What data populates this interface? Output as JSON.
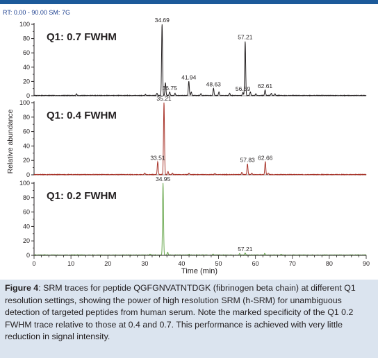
{
  "header": {
    "rt_label": "RT:",
    "rt_range": "0.00 - 90.00",
    "sm_label": "SM:",
    "sm_value": "7G"
  },
  "chart_data": {
    "type": "line",
    "xlabel": "Time (min)",
    "ylabel": "Relative abundance",
    "xlim": [
      0,
      90
    ],
    "ylim": [
      0,
      100
    ],
    "x_ticks": [
      0,
      10,
      20,
      30,
      40,
      50,
      60,
      70,
      80,
      90
    ],
    "y_ticks": [
      0,
      20,
      40,
      60,
      80,
      100
    ],
    "grid": false,
    "panels": [
      {
        "label": "Q1: 0.7 FWHM",
        "color": "#231f20",
        "peaks": [
          {
            "x": 11.5,
            "y": 2
          },
          {
            "x": 30.2,
            "y": 1.5
          },
          {
            "x": 33.3,
            "y": 3
          },
          {
            "x": 34.69,
            "y": 100
          },
          {
            "x": 35.6,
            "y": 18
          },
          {
            "x": 36.75,
            "y": 5
          },
          {
            "x": 38.2,
            "y": 3
          },
          {
            "x": 41.94,
            "y": 20
          },
          {
            "x": 42.6,
            "y": 5
          },
          {
            "x": 45.2,
            "y": 2.5
          },
          {
            "x": 48.63,
            "y": 10
          },
          {
            "x": 50.1,
            "y": 5
          },
          {
            "x": 53.0,
            "y": 3
          },
          {
            "x": 56.59,
            "y": 4
          },
          {
            "x": 57.21,
            "y": 76
          },
          {
            "x": 58.6,
            "y": 5
          },
          {
            "x": 60.1,
            "y": 2.5
          },
          {
            "x": 62.61,
            "y": 8
          },
          {
            "x": 64.3,
            "y": 3
          },
          {
            "x": 65.3,
            "y": 2.5
          }
        ],
        "peak_labels": [
          {
            "x": 34.69,
            "y": 100,
            "text": "34.69"
          },
          {
            "x": 36.75,
            "y": 5,
            "text": "36.75"
          },
          {
            "x": 41.94,
            "y": 20,
            "text": "41.94"
          },
          {
            "x": 48.63,
            "y": 10,
            "text": "48.63"
          },
          {
            "x": 56.59,
            "y": 4,
            "text": "56.59"
          },
          {
            "x": 57.21,
            "y": 76,
            "text": "57.21"
          },
          {
            "x": 62.61,
            "y": 8,
            "text": "62.61"
          }
        ]
      },
      {
        "label": "Q1: 0.4 FWHM",
        "color": "#a8342a",
        "peaks": [
          {
            "x": 30.0,
            "y": 2
          },
          {
            "x": 33.51,
            "y": 18
          },
          {
            "x": 35.21,
            "y": 100
          },
          {
            "x": 36.3,
            "y": 4
          },
          {
            "x": 37.5,
            "y": 2
          },
          {
            "x": 42.0,
            "y": 2
          },
          {
            "x": 49.0,
            "y": 1.5
          },
          {
            "x": 56.3,
            "y": 3
          },
          {
            "x": 57.83,
            "y": 15
          },
          {
            "x": 59.0,
            "y": 2
          },
          {
            "x": 62.66,
            "y": 18
          },
          {
            "x": 63.5,
            "y": 2
          }
        ],
        "peak_labels": [
          {
            "x": 33.51,
            "y": 18,
            "text": "33.51"
          },
          {
            "x": 35.21,
            "y": 100,
            "text": "35.21"
          },
          {
            "x": 57.83,
            "y": 15,
            "text": "57.83"
          },
          {
            "x": 62.66,
            "y": 18,
            "text": "62.66"
          }
        ]
      },
      {
        "label": "Q1: 0.2 FWHM",
        "color": "#6aa84f",
        "peaks": [
          {
            "x": 31.5,
            "y": 1.5
          },
          {
            "x": 34.95,
            "y": 100
          },
          {
            "x": 36.2,
            "y": 4
          },
          {
            "x": 42.0,
            "y": 1
          },
          {
            "x": 48.5,
            "y": 1
          },
          {
            "x": 55.7,
            "y": 2
          },
          {
            "x": 57.21,
            "y": 3
          },
          {
            "x": 62.5,
            "y": 2
          },
          {
            "x": 67.0,
            "y": 1
          }
        ],
        "peak_labels": [
          {
            "x": 34.95,
            "y": 100,
            "text": "34.95"
          },
          {
            "x": 57.21,
            "y": 3,
            "text": "57.21"
          }
        ]
      }
    ]
  },
  "caption": {
    "figure_label": "Figure 4",
    "text": ": SRM traces for peptide QGFGNVATNTDGK (fibrinogen beta chain) at different Q1 resolution settings, showing the power of high resolution SRM (h-SRM) for unambiguous detection of targeted peptides from human serum. Note the marked specificity of the Q1 0.2 FWHM trace relative to those at 0.4 and 0.7. This performance is achieved with very little reduction in signal intensity."
  }
}
